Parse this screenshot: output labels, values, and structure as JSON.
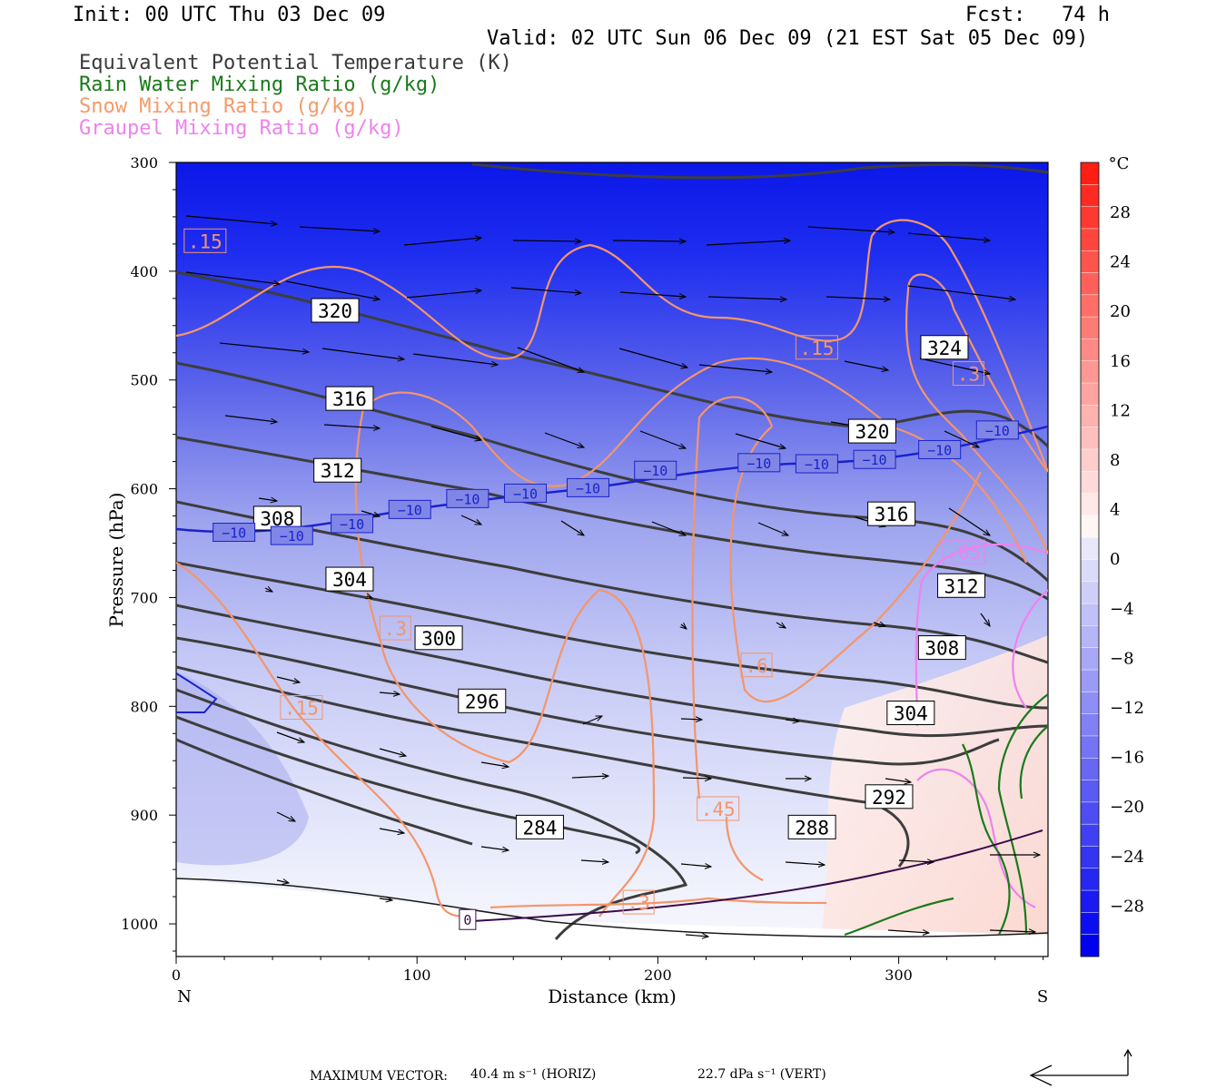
{
  "header": {
    "init": "Init: 00 UTC Thu 03 Dec 09",
    "fcst": "Fcst:   74 h",
    "valid": "Valid: 02 UTC Sun 06 Dec 09 (21 EST Sat 05 Dec 09)"
  },
  "legend": [
    {
      "text": "Equivalent Potential Temperature (K)",
      "color": "#3a3a3a"
    },
    {
      "text": "Rain Water Mixing Ratio (g/kg)",
      "color": "#1a7a1a"
    },
    {
      "text": "Snow Mixing Ratio (g/kg)",
      "color": "#f49a6a"
    },
    {
      "text": "Graupel Mixing Ratio (g/kg)",
      "color": "#ee82ee"
    }
  ],
  "footer": {
    "max_vector_label": "MAXIMUM VECTOR:",
    "horiz": "40.4 m s⁻¹ (HORIZ)",
    "vert": "22.7 dPa s⁻¹ (VERT)"
  },
  "chart_data": {
    "type": "contour",
    "xlabel": "Distance (km)",
    "ylabel": "Pressure (hPa)",
    "xlim": [
      0,
      362
    ],
    "ylim": [
      1030,
      300
    ],
    "x_ticks": [
      "0",
      "100",
      "200",
      "300"
    ],
    "y_ticks": [
      "300",
      "400",
      "500",
      "600",
      "700",
      "800",
      "900",
      "1000"
    ],
    "x_end_labels": {
      "left": "N",
      "right": "S"
    },
    "colorbar": {
      "unit": "°C",
      "labels": [
        "28",
        "24",
        "20",
        "16",
        "12",
        "8",
        "4",
        "0",
        "−4",
        "−8",
        "−12",
        "−16",
        "−20",
        "−24",
        "−28"
      ]
    },
    "theta_e_labels": [
      {
        "text": "320",
        "x": 66,
        "p": 436
      },
      {
        "text": "316",
        "x": 72,
        "p": 517
      },
      {
        "text": "312",
        "x": 67,
        "p": 583
      },
      {
        "text": "308",
        "x": 42,
        "p": 627
      },
      {
        "text": "304",
        "x": 72,
        "p": 683
      },
      {
        "text": "300",
        "x": 109,
        "p": 737
      },
      {
        "text": "296",
        "x": 127,
        "p": 795
      },
      {
        "text": "284",
        "x": 151,
        "p": 911
      },
      {
        "text": "288",
        "x": 264,
        "p": 911
      },
      {
        "text": "292",
        "x": 296,
        "p": 883
      },
      {
        "text": "304",
        "x": 305,
        "p": 806
      },
      {
        "text": "308",
        "x": 318,
        "p": 746
      },
      {
        "text": "312",
        "x": 326,
        "p": 689
      },
      {
        "text": "316",
        "x": 297,
        "p": 623
      },
      {
        "text": "320",
        "x": 289,
        "p": 547
      },
      {
        "text": "324",
        "x": 319,
        "p": 470
      }
    ],
    "temp_labels": [
      {
        "text": "−10",
        "x": 24,
        "p": 640
      },
      {
        "text": "−10",
        "x": 48,
        "p": 643
      },
      {
        "text": "−10",
        "x": 73,
        "p": 632
      },
      {
        "text": "−10",
        "x": 97,
        "p": 619
      },
      {
        "text": "−10",
        "x": 121,
        "p": 609
      },
      {
        "text": "−10",
        "x": 145,
        "p": 604
      },
      {
        "text": "−10",
        "x": 171,
        "p": 599
      },
      {
        "text": "−10",
        "x": 199,
        "p": 583
      },
      {
        "text": "−10",
        "x": 242,
        "p": 576
      },
      {
        "text": "−10",
        "x": 266,
        "p": 577
      },
      {
        "text": "−10",
        "x": 290,
        "p": 573
      },
      {
        "text": "−10",
        "x": 317,
        "p": 564
      },
      {
        "text": "−10",
        "x": 341,
        "p": 546
      }
    ],
    "snow_labels": [
      {
        "text": ".15",
        "x": 12,
        "p": 372
      },
      {
        "text": ".15",
        "x": 266,
        "p": 470
      },
      {
        "text": ".3",
        "x": 329,
        "p": 494
      },
      {
        "text": ".3",
        "x": 91,
        "p": 728
      },
      {
        "text": ".15",
        "x": 52,
        "p": 801
      },
      {
        "text": ".6",
        "x": 241,
        "p": 762
      },
      {
        "text": ".45",
        "x": 225,
        "p": 894
      },
      {
        "text": ".3",
        "x": 192,
        "p": 980
      }
    ],
    "graupel_labels": [
      {
        "text": ".05",
        "x": 327,
        "p": 658
      }
    ],
    "zero_label": {
      "text": "0",
      "x": 121,
      "p": 996
    }
  }
}
